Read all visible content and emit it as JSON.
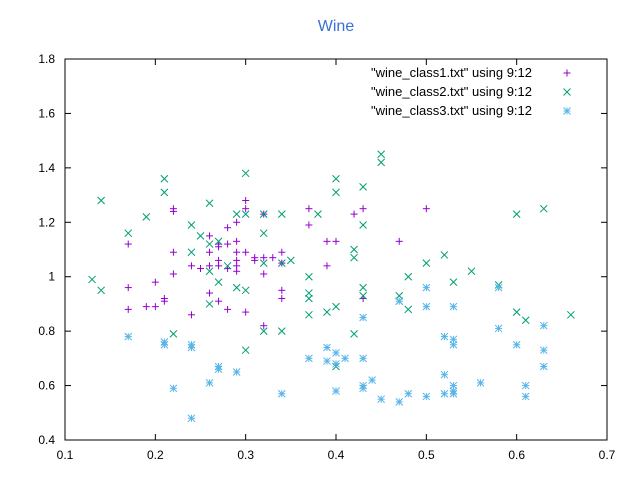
{
  "chart_data": {
    "type": "scatter",
    "title": "Wine",
    "xlabel": "",
    "ylabel": "",
    "xlim": [
      0.1,
      0.7
    ],
    "ylim": [
      0.4,
      1.8
    ],
    "xticks": [
      "0.1",
      "0.2",
      "0.3",
      "0.4",
      "0.5",
      "0.6",
      "0.7"
    ],
    "yticks": [
      "0.4",
      "0.6",
      "0.8",
      "1",
      "1.2",
      "1.4",
      "1.6",
      "1.8"
    ],
    "grid": false,
    "legend_position": "top-right",
    "series": [
      {
        "name": "\"wine_class1.txt\" using 9:12",
        "marker": "plus",
        "color": "#9400d3",
        "points": [
          [
            0.17,
            1.12
          ],
          [
            0.17,
            0.96
          ],
          [
            0.17,
            0.88
          ],
          [
            0.19,
            0.89
          ],
          [
            0.2,
            0.98
          ],
          [
            0.2,
            0.89
          ],
          [
            0.21,
            0.91
          ],
          [
            0.21,
            0.92
          ],
          [
            0.22,
            1.25
          ],
          [
            0.22,
            1.24
          ],
          [
            0.22,
            1.09
          ],
          [
            0.22,
            1.01
          ],
          [
            0.24,
            1.04
          ],
          [
            0.24,
            0.86
          ],
          [
            0.25,
            1.03
          ],
          [
            0.26,
            1.15
          ],
          [
            0.26,
            1.09
          ],
          [
            0.26,
            1.04
          ],
          [
            0.26,
            0.94
          ],
          [
            0.27,
            1.12
          ],
          [
            0.27,
            1.11
          ],
          [
            0.27,
            1.06
          ],
          [
            0.27,
            1.04
          ],
          [
            0.27,
            0.91
          ],
          [
            0.28,
            1.18
          ],
          [
            0.28,
            1.12
          ],
          [
            0.28,
            1.03
          ],
          [
            0.28,
            0.88
          ],
          [
            0.29,
            1.2
          ],
          [
            0.29,
            1.13
          ],
          [
            0.29,
            1.09
          ],
          [
            0.29,
            1.06
          ],
          [
            0.29,
            1.04
          ],
          [
            0.29,
            1.02
          ],
          [
            0.3,
            1.28
          ],
          [
            0.3,
            1.25
          ],
          [
            0.3,
            1.09
          ],
          [
            0.3,
            0.87
          ],
          [
            0.31,
            1.07
          ],
          [
            0.31,
            1.06
          ],
          [
            0.32,
            1.23
          ],
          [
            0.32,
            1.07
          ],
          [
            0.32,
            1.01
          ],
          [
            0.32,
            0.82
          ],
          [
            0.33,
            1.07
          ],
          [
            0.34,
            1.09
          ],
          [
            0.34,
            1.05
          ],
          [
            0.34,
            0.95
          ],
          [
            0.34,
            0.92
          ],
          [
            0.37,
            1.25
          ],
          [
            0.37,
            1.19
          ],
          [
            0.39,
            1.13
          ],
          [
            0.39,
            1.04
          ],
          [
            0.4,
            1.13
          ],
          [
            0.42,
            1.23
          ],
          [
            0.43,
            1.25
          ],
          [
            0.43,
            0.92
          ],
          [
            0.47,
            1.13
          ],
          [
            0.5,
            1.25
          ]
        ]
      },
      {
        "name": "\"wine_class2.txt\" using 9:12",
        "marker": "cross",
        "color": "#009e73",
        "points": [
          [
            0.13,
            0.99
          ],
          [
            0.14,
            1.28
          ],
          [
            0.14,
            0.95
          ],
          [
            0.17,
            1.16
          ],
          [
            0.19,
            1.22
          ],
          [
            0.21,
            1.36
          ],
          [
            0.21,
            1.31
          ],
          [
            0.22,
            0.79
          ],
          [
            0.24,
            1.19
          ],
          [
            0.24,
            1.09
          ],
          [
            0.25,
            1.15
          ],
          [
            0.26,
            1.27
          ],
          [
            0.26,
            1.12
          ],
          [
            0.26,
            1.02
          ],
          [
            0.26,
            0.9
          ],
          [
            0.27,
            1.13
          ],
          [
            0.27,
            0.98
          ],
          [
            0.28,
            1.04
          ],
          [
            0.29,
            1.23
          ],
          [
            0.29,
            0.96
          ],
          [
            0.3,
            1.38
          ],
          [
            0.3,
            1.23
          ],
          [
            0.3,
            0.95
          ],
          [
            0.3,
            0.73
          ],
          [
            0.32,
            1.23
          ],
          [
            0.32,
            1.16
          ],
          [
            0.32,
            1.05
          ],
          [
            0.32,
            0.8
          ],
          [
            0.34,
            1.23
          ],
          [
            0.34,
            1.05
          ],
          [
            0.34,
            0.8
          ],
          [
            0.35,
            1.06
          ],
          [
            0.37,
            1.0
          ],
          [
            0.37,
            0.94
          ],
          [
            0.37,
            0.92
          ],
          [
            0.37,
            0.86
          ],
          [
            0.38,
            1.23
          ],
          [
            0.39,
            0.87
          ],
          [
            0.4,
            1.36
          ],
          [
            0.4,
            1.31
          ],
          [
            0.4,
            0.89
          ],
          [
            0.4,
            0.67
          ],
          [
            0.42,
            1.1
          ],
          [
            0.42,
            1.07
          ],
          [
            0.42,
            0.79
          ],
          [
            0.43,
            1.33
          ],
          [
            0.43,
            1.19
          ],
          [
            0.43,
            0.96
          ],
          [
            0.43,
            0.93
          ],
          [
            0.45,
            1.45
          ],
          [
            0.45,
            1.42
          ],
          [
            0.47,
            0.93
          ],
          [
            0.47,
            0.91
          ],
          [
            0.48,
            1.0
          ],
          [
            0.48,
            0.88
          ],
          [
            0.5,
            1.05
          ],
          [
            0.52,
            1.08
          ],
          [
            0.53,
            0.98
          ],
          [
            0.55,
            1.02
          ],
          [
            0.58,
            0.97
          ],
          [
            0.6,
            1.23
          ],
          [
            0.6,
            0.87
          ],
          [
            0.61,
            0.84
          ],
          [
            0.63,
            1.25
          ],
          [
            0.66,
            0.86
          ]
        ]
      },
      {
        "name": "\"wine_class3.txt\" using 9:12",
        "marker": "star",
        "color": "#56b4e9",
        "points": [
          [
            0.17,
            0.78
          ],
          [
            0.21,
            0.76
          ],
          [
            0.21,
            0.75
          ],
          [
            0.22,
            0.59
          ],
          [
            0.24,
            0.75
          ],
          [
            0.24,
            0.74
          ],
          [
            0.24,
            0.48
          ],
          [
            0.26,
            0.61
          ],
          [
            0.27,
            0.67
          ],
          [
            0.27,
            0.66
          ],
          [
            0.29,
            0.65
          ],
          [
            0.34,
            0.57
          ],
          [
            0.37,
            0.7
          ],
          [
            0.39,
            0.74
          ],
          [
            0.39,
            0.69
          ],
          [
            0.4,
            0.72
          ],
          [
            0.4,
            0.68
          ],
          [
            0.4,
            0.58
          ],
          [
            0.41,
            0.7
          ],
          [
            0.43,
            0.85
          ],
          [
            0.43,
            0.7
          ],
          [
            0.43,
            0.6
          ],
          [
            0.43,
            0.59
          ],
          [
            0.44,
            0.62
          ],
          [
            0.45,
            0.55
          ],
          [
            0.47,
            0.91
          ],
          [
            0.47,
            0.54
          ],
          [
            0.48,
            0.57
          ],
          [
            0.5,
            0.96
          ],
          [
            0.5,
            0.89
          ],
          [
            0.5,
            0.56
          ],
          [
            0.52,
            0.78
          ],
          [
            0.52,
            0.64
          ],
          [
            0.52,
            0.57
          ],
          [
            0.53,
            0.89
          ],
          [
            0.53,
            0.77
          ],
          [
            0.53,
            0.75
          ],
          [
            0.53,
            0.6
          ],
          [
            0.53,
            0.58
          ],
          [
            0.53,
            0.57
          ],
          [
            0.56,
            0.61
          ],
          [
            0.58,
            0.96
          ],
          [
            0.58,
            0.81
          ],
          [
            0.6,
            0.75
          ],
          [
            0.61,
            0.6
          ],
          [
            0.61,
            0.56
          ],
          [
            0.63,
            0.82
          ],
          [
            0.63,
            0.73
          ],
          [
            0.63,
            0.67
          ]
        ]
      }
    ]
  }
}
